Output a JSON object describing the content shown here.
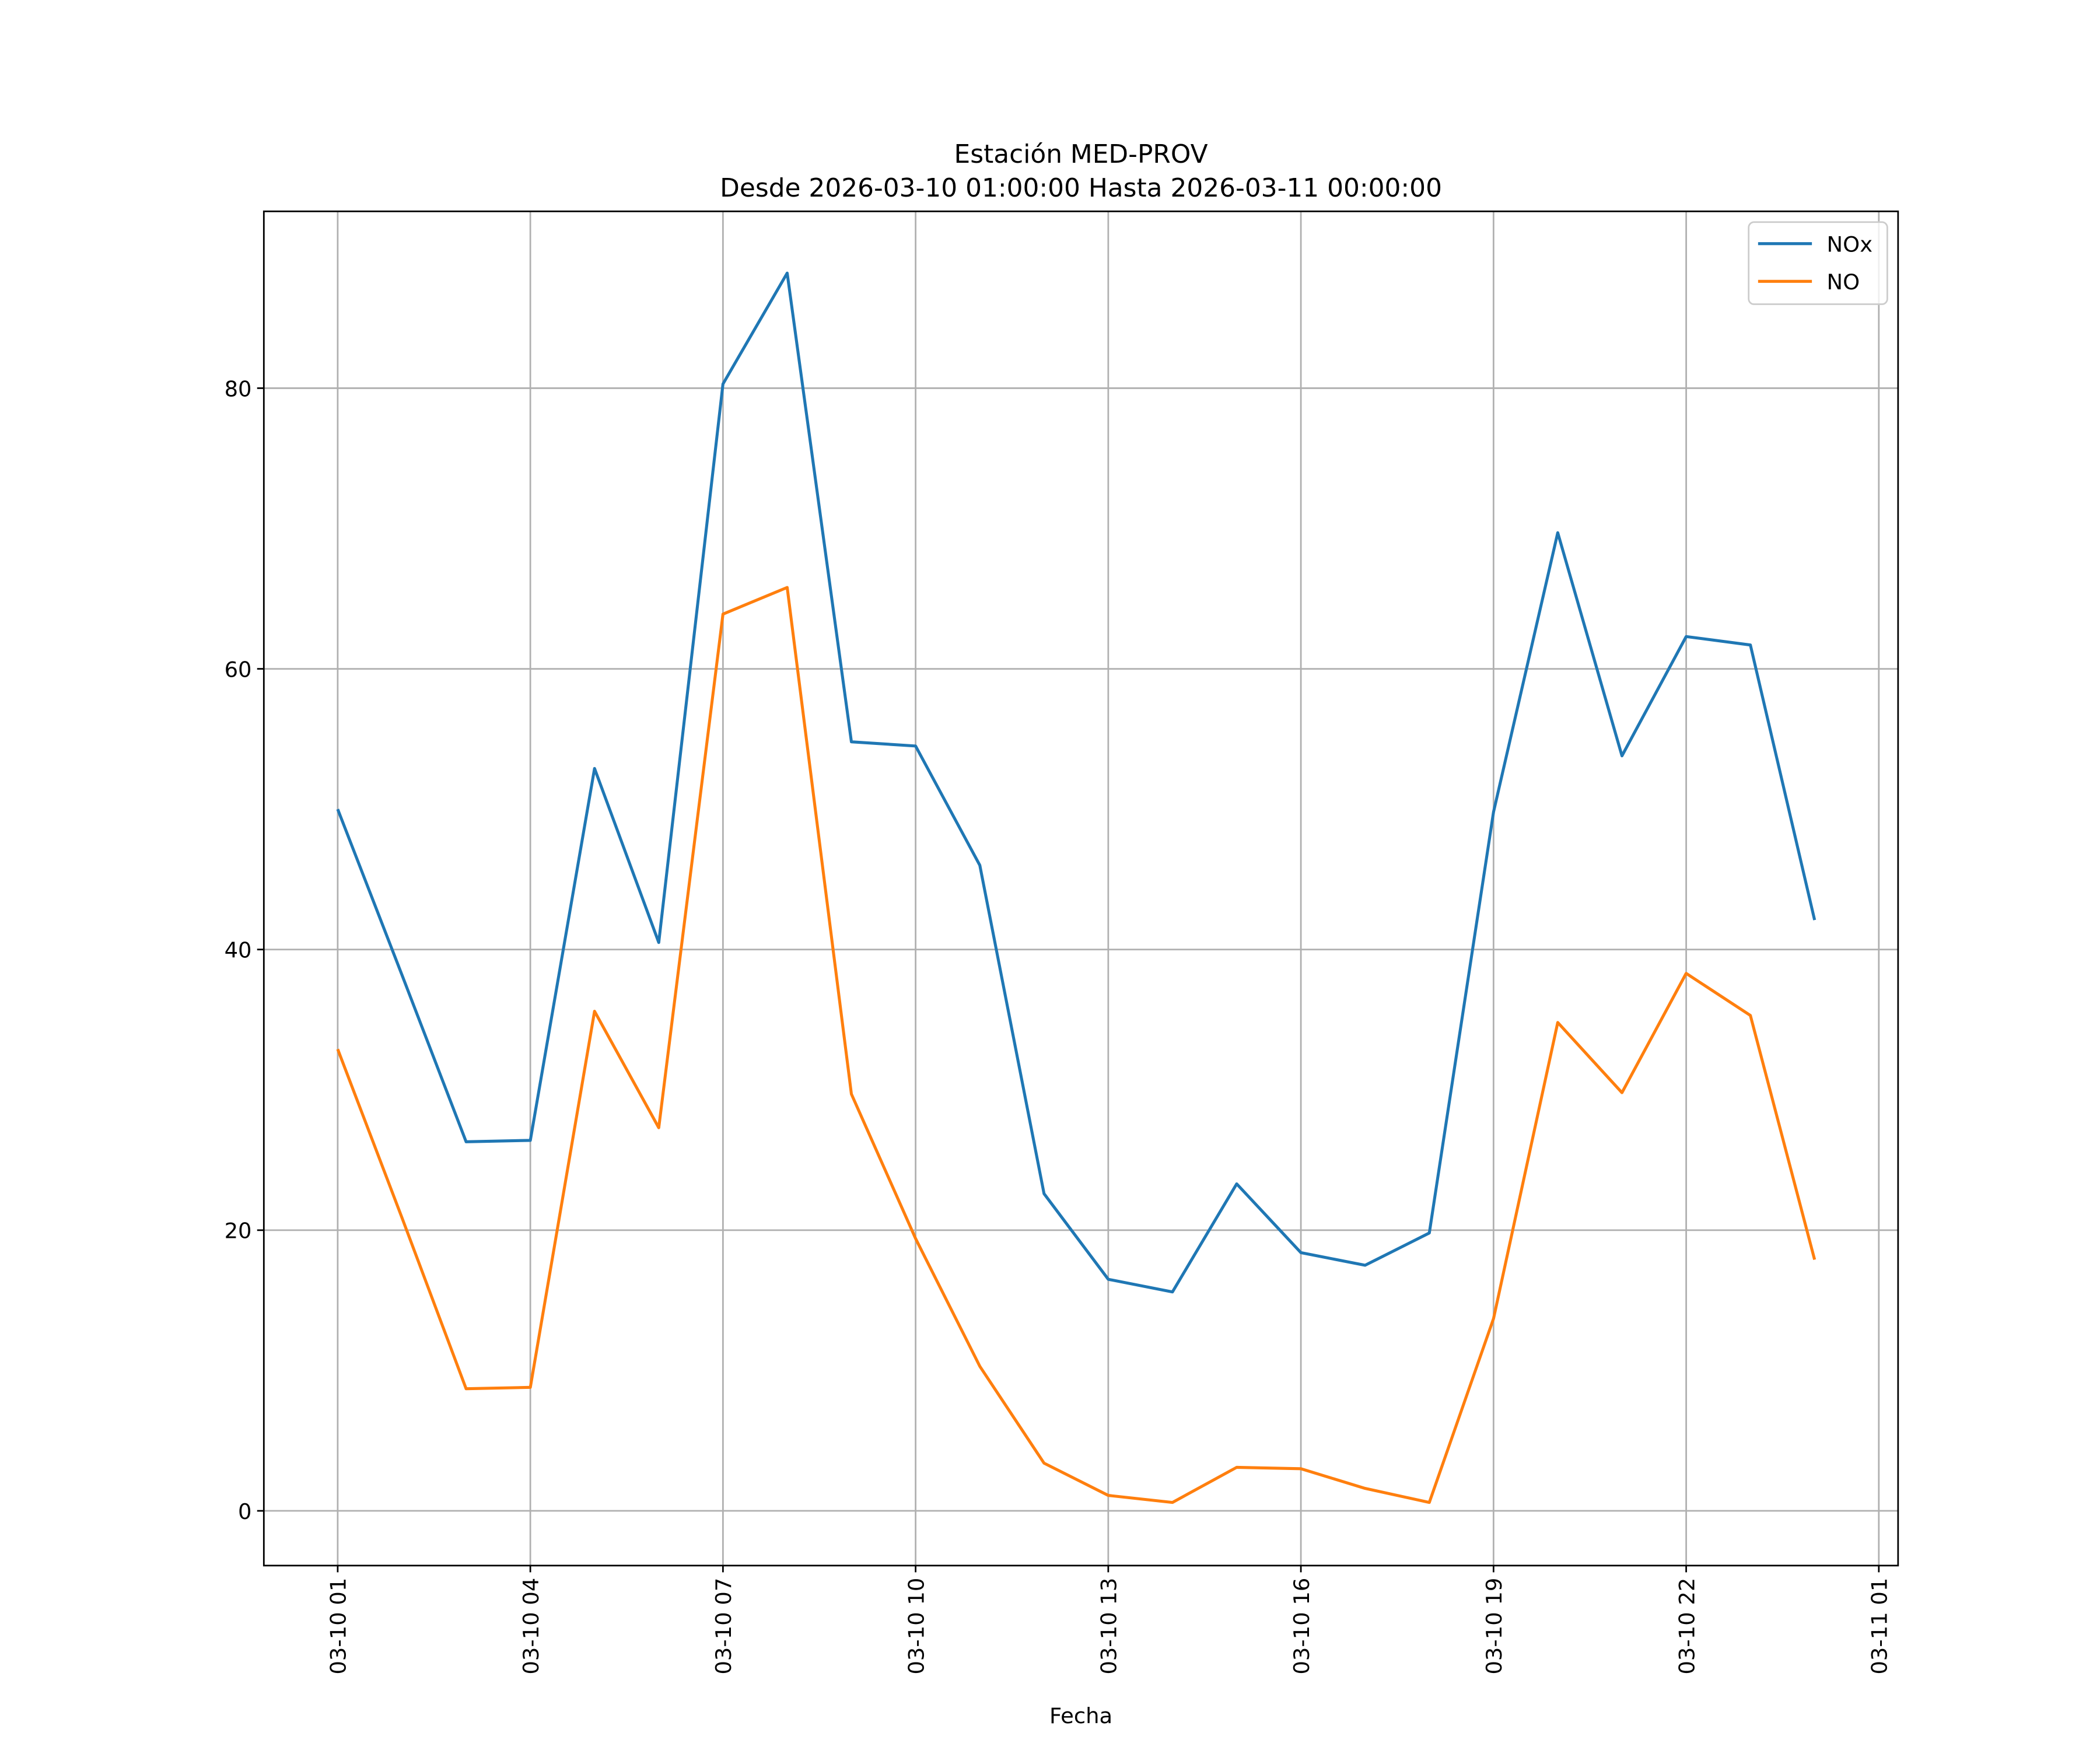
{
  "chart_data": {
    "type": "line",
    "title": "Estación MED-PROV",
    "subtitle": "Desde 2026-03-10 01:00:00 Hasta 2026-03-11 00:00:00",
    "xlabel": "Fecha",
    "ylabel": "",
    "x_hours": [
      1,
      2,
      3,
      4,
      5,
      6,
      7,
      8,
      9,
      10,
      11,
      12,
      13,
      14,
      15,
      16,
      17,
      18,
      19,
      20,
      21,
      22,
      23,
      24
    ],
    "xlim_hours": [
      -0.15,
      25.3
    ],
    "ylim": [
      -3.9,
      92.6
    ],
    "x_ticks": [
      {
        "hour": 1,
        "label": "03-10 01"
      },
      {
        "hour": 4,
        "label": "03-10 04"
      },
      {
        "hour": 7,
        "label": "03-10 07"
      },
      {
        "hour": 10,
        "label": "03-10 10"
      },
      {
        "hour": 13,
        "label": "03-10 13"
      },
      {
        "hour": 16,
        "label": "03-10 16"
      },
      {
        "hour": 19,
        "label": "03-10 19"
      },
      {
        "hour": 22,
        "label": "03-10 22"
      },
      {
        "hour": 25,
        "label": "03-11 01"
      }
    ],
    "y_ticks": [
      {
        "value": 0,
        "label": "0"
      },
      {
        "value": 20,
        "label": "20"
      },
      {
        "value": 40,
        "label": "40"
      },
      {
        "value": 60,
        "label": "60"
      },
      {
        "value": 80,
        "label": "80"
      }
    ],
    "grid": true,
    "legend_position": "top-right",
    "series": [
      {
        "name": "NOx",
        "color": "#1f77b4",
        "values": [
          50.0,
          38.2,
          26.3,
          26.4,
          52.9,
          40.5,
          80.3,
          88.2,
          54.8,
          54.5,
          46.0,
          22.6,
          16.5,
          15.6,
          23.3,
          18.4,
          17.5,
          19.8,
          49.8,
          69.7,
          53.8,
          62.3,
          61.7,
          42.1
        ]
      },
      {
        "name": "NO",
        "color": "#ff7f0e",
        "values": [
          32.9,
          20.9,
          8.7,
          8.8,
          35.6,
          27.3,
          63.9,
          65.8,
          29.7,
          19.4,
          10.3,
          3.4,
          1.1,
          0.6,
          3.1,
          3.0,
          1.6,
          0.6,
          13.7,
          34.8,
          29.8,
          38.3,
          35.3,
          17.9
        ]
      }
    ]
  }
}
